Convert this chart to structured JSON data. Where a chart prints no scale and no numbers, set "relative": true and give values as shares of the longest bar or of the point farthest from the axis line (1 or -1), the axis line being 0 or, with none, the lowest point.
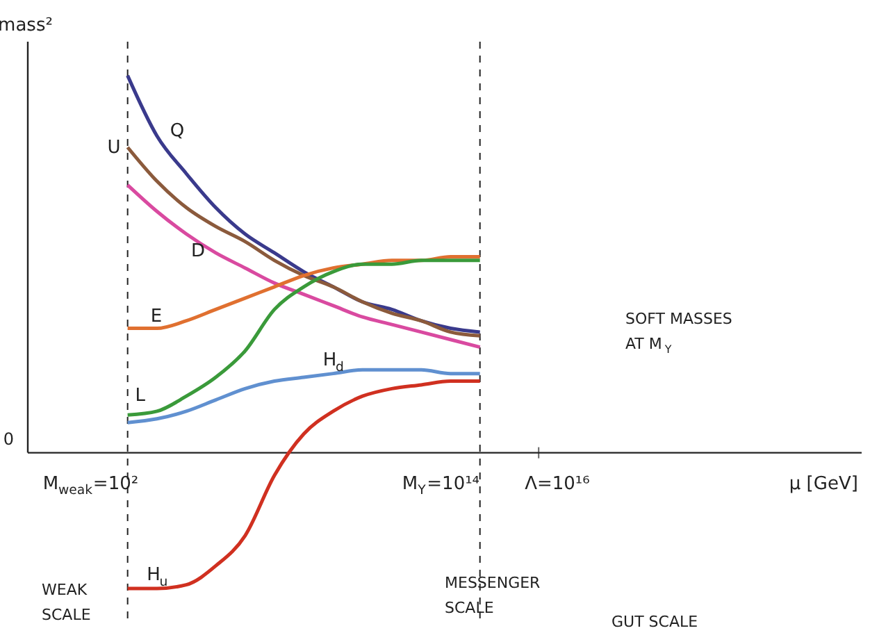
{
  "chart_data": {
    "type": "line",
    "relative": true,
    "ylabel": "mass²",
    "categories": [
      null,
      null,
      null,
      null,
      null,
      null,
      null,
      null,
      null,
      null,
      null,
      null,
      null
    ],
    "series": [
      {
        "name": "Q",
        "color": "#3a3a8c",
        "values": [
          1.0,
          0.84,
          0.74,
          0.65,
          0.58,
          0.53,
          0.48,
          0.44,
          0.4,
          0.38,
          0.35,
          0.33,
          0.32
        ]
      },
      {
        "name": "U",
        "color": "#8b5a3c",
        "values": [
          0.81,
          0.72,
          0.65,
          0.6,
          0.56,
          0.51,
          0.47,
          0.44,
          0.4,
          0.37,
          0.35,
          0.32,
          0.31
        ]
      },
      {
        "name": "D",
        "color": "#d94aa0",
        "values": [
          0.71,
          0.64,
          0.58,
          0.53,
          0.49,
          0.45,
          0.42,
          0.39,
          0.36,
          0.34,
          0.32,
          0.3,
          0.28
        ]
      },
      {
        "name": "E",
        "color": "#e07030",
        "values": [
          0.33,
          0.33,
          0.35,
          0.38,
          0.41,
          0.44,
          0.47,
          0.49,
          0.5,
          0.51,
          0.51,
          0.52,
          0.52
        ]
      },
      {
        "name": "L",
        "color": "#3a9a3a",
        "values": [
          0.1,
          0.11,
          0.15,
          0.2,
          0.27,
          0.38,
          0.44,
          0.48,
          0.5,
          0.5,
          0.51,
          0.51,
          0.51
        ]
      },
      {
        "name": "H$_{d}$",
        "color": "#6090d0",
        "values": [
          0.08,
          0.09,
          0.11,
          0.14,
          0.17,
          0.19,
          0.2,
          0.21,
          0.22,
          0.22,
          0.22,
          0.21,
          0.21
        ]
      },
      {
        "name": "H$_{u}$",
        "color": "#d03020",
        "values": [
          -0.36,
          -0.36,
          -0.35,
          -0.3,
          -0.22,
          -0.06,
          0.05,
          0.11,
          0.15,
          0.17,
          0.18,
          0.19,
          0.19
        ]
      }
    ],
    "annotations": [
      "0",
      "SOFT MASSES\nAT M$_{Y}$",
      "WEAK\nSCALE",
      "MESSENGER\nSCALE",
      "GUT SCALE",
      "M$_{weak}$=10²",
      "M$_{Y}$=10¹⁴",
      "Λ=10¹⁶",
      "μ [GeV]"
    ]
  }
}
